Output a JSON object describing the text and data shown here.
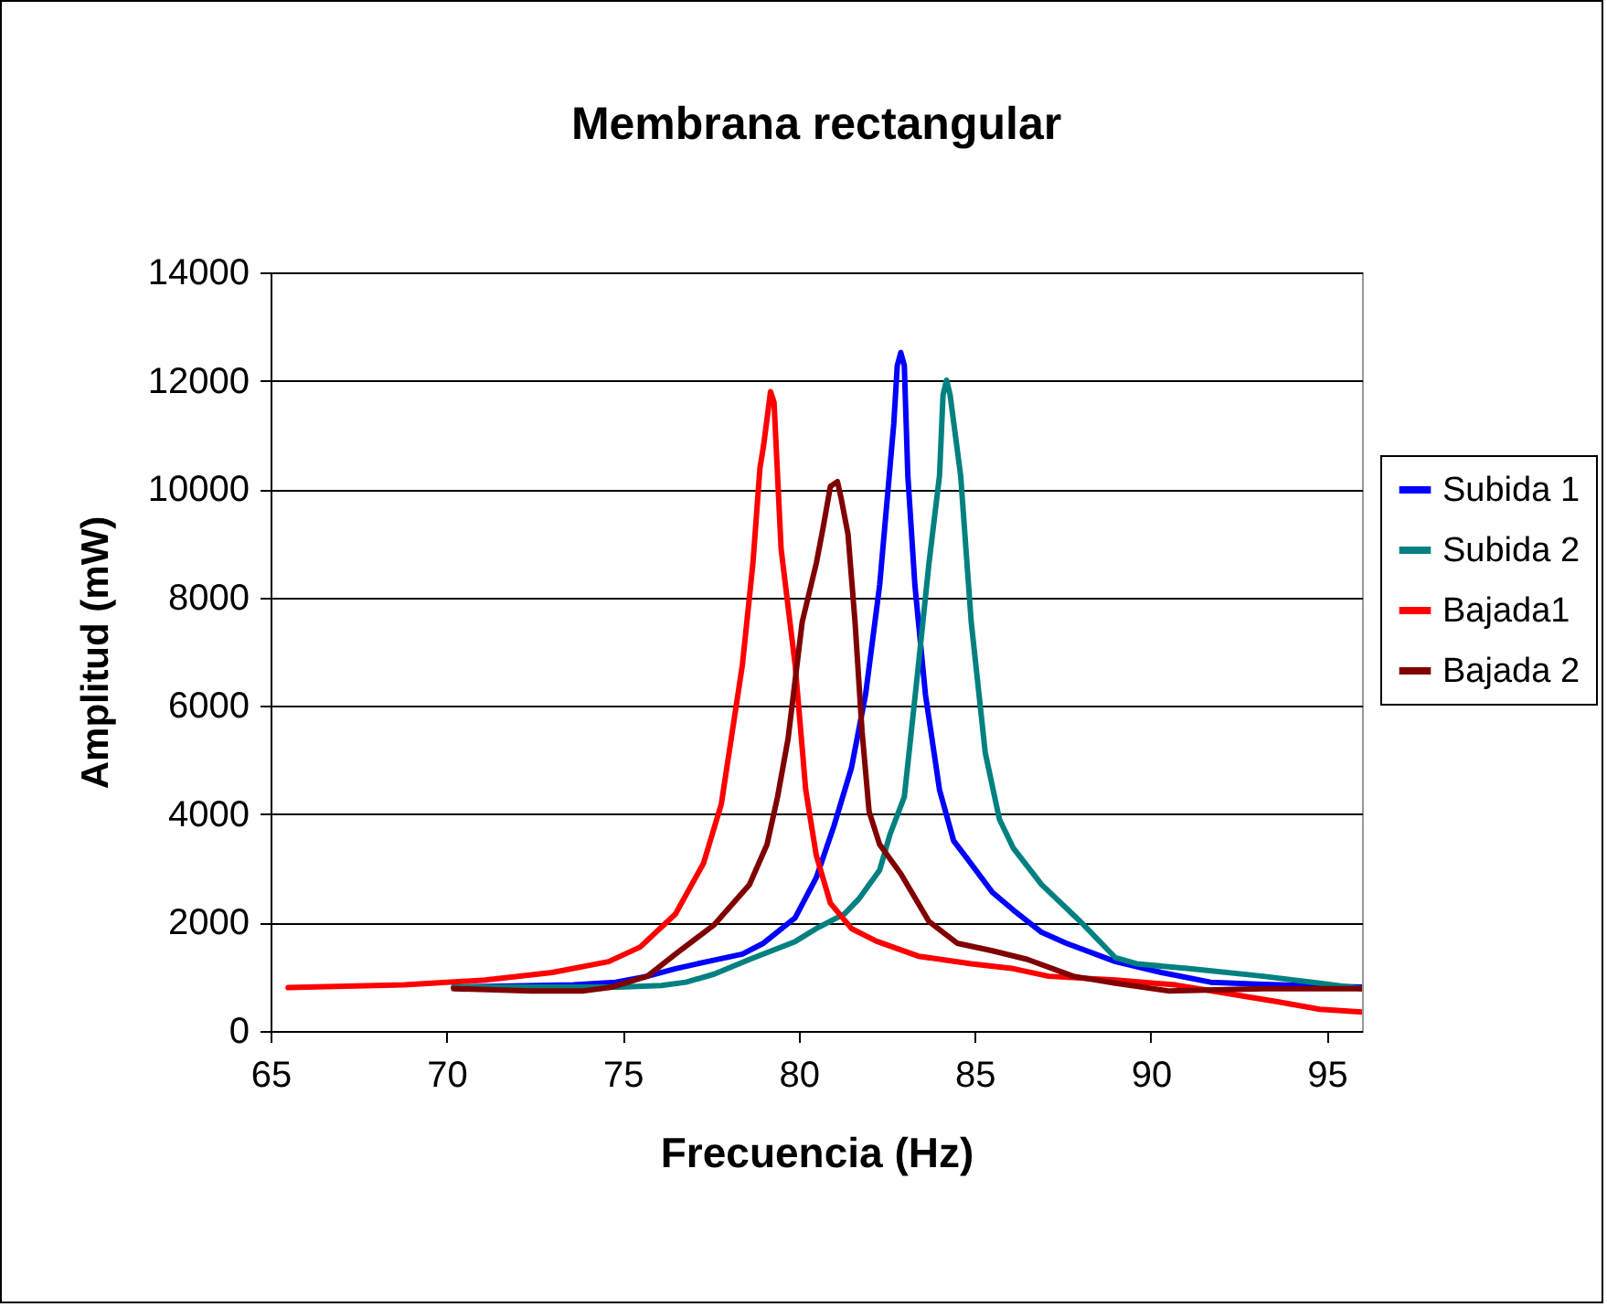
{
  "chart_data": {
    "type": "line",
    "title": "Membrana rectangular",
    "xlabel": "Frecuencia (Hz)",
    "ylabel": "Amplitud (mW)",
    "xlim": [
      65,
      96
    ],
    "xticks": [
      65,
      70,
      75,
      80,
      85,
      90,
      95
    ],
    "ylim": [
      0,
      14000
    ],
    "yticks": [
      0,
      2000,
      4000,
      6000,
      8000,
      10000,
      12000,
      14000
    ],
    "grid": "y",
    "legend": "right",
    "series": [
      {
        "name": "Subida 1",
        "color": "#0000ff",
        "x": [
          70.2,
          73.6,
          74.8,
          75.7,
          76.5,
          77.4,
          78.4,
          79.0,
          79.9,
          80.5,
          81.0,
          81.5,
          81.9,
          82.3,
          82.5,
          82.7,
          82.8,
          82.9,
          83.0,
          83.1,
          83.3,
          83.6,
          84.0,
          84.4,
          84.8,
          85.5,
          86.1,
          86.9,
          87.6,
          89.0,
          90.3,
          91.7,
          93.2,
          96.0
        ],
        "values": [
          810,
          850,
          900,
          1010,
          1150,
          1280,
          1420,
          1620,
          2090,
          2830,
          3780,
          4860,
          6210,
          8230,
          9710,
          11200,
          12280,
          12520,
          12280,
          10250,
          8230,
          6210,
          4450,
          3510,
          3170,
          2560,
          2230,
          1820,
          1620,
          1280,
          1080,
          900,
          860,
          810
        ]
      },
      {
        "name": "Subida 2",
        "color": "#008080",
        "x": [
          70.2,
          74.9,
          76.1,
          76.8,
          77.6,
          78.6,
          79.9,
          80.5,
          81.3,
          81.7,
          82.3,
          82.6,
          83.0,
          83.2,
          83.4,
          83.7,
          84.0,
          84.1,
          84.2,
          84.3,
          84.6,
          84.9,
          85.3,
          85.7,
          86.1,
          86.9,
          88.0,
          89.0,
          89.6,
          91.1,
          93.2,
          94.8,
          96.0
        ],
        "values": [
          810,
          810,
          840,
          900,
          1050,
          1320,
          1650,
          1890,
          2160,
          2430,
          2970,
          3640,
          4320,
          5530,
          6750,
          8630,
          10250,
          11740,
          12010,
          11740,
          10250,
          7550,
          5130,
          3910,
          3370,
          2700,
          2020,
          1350,
          1240,
          1150,
          1010,
          880,
          780
        ]
      },
      {
        "name": "Bajada1",
        "color": "#ff0000",
        "x": [
          65.5,
          68.8,
          71.1,
          73.0,
          74.6,
          75.5,
          76.5,
          77.3,
          77.8,
          78.4,
          78.7,
          78.9,
          79.0,
          79.2,
          79.3,
          79.5,
          79.9,
          80.2,
          80.5,
          80.9,
          81.5,
          82.2,
          83.4,
          84.9,
          86.1,
          87.1,
          89.0,
          90.7,
          92.1,
          93.6,
          94.8,
          96.0
        ],
        "values": [
          800,
          850,
          940,
          1080,
          1280,
          1550,
          2160,
          3100,
          4180,
          6750,
          8630,
          10390,
          10790,
          11800,
          11600,
          8900,
          6750,
          4450,
          3240,
          2360,
          1890,
          1660,
          1380,
          1240,
          1150,
          1010,
          940,
          850,
          700,
          540,
          400,
          350
        ]
      },
      {
        "name": "Bajada 2",
        "color": "#800000",
        "x": [
          70.2,
          72.4,
          73.9,
          74.7,
          75.7,
          76.5,
          77.6,
          78.6,
          79.1,
          79.4,
          79.7,
          79.9,
          80.1,
          80.3,
          80.5,
          80.7,
          80.9,
          81.1,
          81.2,
          81.4,
          81.6,
          81.8,
          82.0,
          82.3,
          82.9,
          83.7,
          84.5,
          85.5,
          86.5,
          87.8,
          89.0,
          90.5,
          93.2,
          96.0
        ],
        "values": [
          780,
          740,
          740,
          810,
          1010,
          1420,
          1960,
          2700,
          3440,
          4320,
          5400,
          6480,
          7550,
          8090,
          8630,
          9310,
          10050,
          10140,
          9850,
          9170,
          7550,
          5530,
          4050,
          3440,
          2900,
          2020,
          1620,
          1480,
          1320,
          1010,
          880,
          740,
          780,
          780
        ]
      }
    ]
  }
}
